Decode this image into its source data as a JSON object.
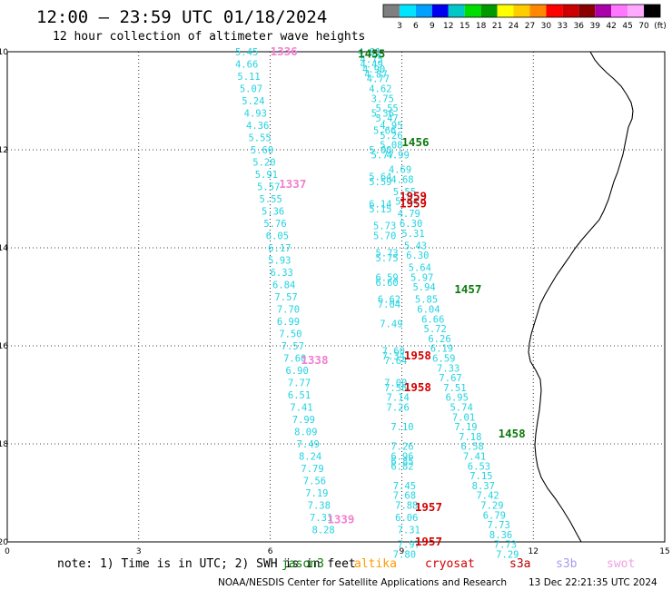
{
  "chart_data": {
    "type": "scatter",
    "title": "12:00 – 23:59 UTC 01/18/2024",
    "subtitle": "12 hour collection of altimeter wave heights",
    "xlim": [
      0,
      15
    ],
    "ylim": [
      -20,
      -10
    ],
    "x_ticks": [
      0,
      3,
      6,
      9,
      12,
      15
    ],
    "y_ticks": [
      -10,
      -12,
      -14,
      -16,
      -18,
      -20
    ],
    "x_tick_labels": [
      "0",
      "3",
      "6",
      "9",
      "12",
      "15"
    ],
    "y_tick_labels": [
      "-10",
      "-12",
      "-14",
      "-16",
      "-18",
      "-20"
    ],
    "grid": true,
    "legend_scale": {
      "labels": [
        "3",
        "6",
        "9",
        "12",
        "15",
        "18",
        "21",
        "24",
        "27",
        "30",
        "33",
        "36",
        "39",
        "42",
        "45",
        "70",
        "(ft)"
      ],
      "colors": [
        "#7f7f7f",
        "#00e5ff",
        "#00a0ff",
        "#0000ee",
        "#00c8c8",
        "#00dd00",
        "#009900",
        "#ffff00",
        "#ffcc00",
        "#ff8800",
        "#ff0000",
        "#cc0000",
        "#880000",
        "#aa00aa",
        "#ff77ff",
        "#ffaaff",
        "#000000"
      ]
    },
    "series": [
      {
        "color": "#22d3e0",
        "points": [
          {
            "x": 5.2,
            "y": -10.0,
            "v": "5.45"
          },
          {
            "x": 5.2,
            "y": -10.25,
            "v": "4.66"
          },
          {
            "x": 5.25,
            "y": -10.5,
            "v": "5.11"
          },
          {
            "x": 5.3,
            "y": -10.75,
            "v": "5.07"
          },
          {
            "x": 5.35,
            "y": -11.0,
            "v": "5.24"
          },
          {
            "x": 5.4,
            "y": -11.25,
            "v": "4.93"
          },
          {
            "x": 5.45,
            "y": -11.5,
            "v": "4.36"
          },
          {
            "x": 5.5,
            "y": -11.75,
            "v": "5.55"
          },
          {
            "x": 5.55,
            "y": -12.0,
            "v": "5.60"
          },
          {
            "x": 5.6,
            "y": -12.25,
            "v": "5.20"
          },
          {
            "x": 5.65,
            "y": -12.5,
            "v": "5.91"
          },
          {
            "x": 5.7,
            "y": -12.75,
            "v": "5.57"
          },
          {
            "x": 5.75,
            "y": -13.0,
            "v": "5.55"
          },
          {
            "x": 5.8,
            "y": -13.25,
            "v": "5.36"
          },
          {
            "x": 5.85,
            "y": -13.5,
            "v": "5.76"
          },
          {
            "x": 5.9,
            "y": -13.75,
            "v": "6.05"
          },
          {
            "x": 5.95,
            "y": -14.0,
            "v": "6.17"
          },
          {
            "x": 5.95,
            "y": -14.25,
            "v": "5.93"
          },
          {
            "x": 6.0,
            "y": -14.5,
            "v": "6.33"
          },
          {
            "x": 6.05,
            "y": -14.75,
            "v": "6.84"
          },
          {
            "x": 6.1,
            "y": -15.0,
            "v": "7.57"
          },
          {
            "x": 6.15,
            "y": -15.25,
            "v": "7.70"
          },
          {
            "x": 6.15,
            "y": -15.5,
            "v": "6.99"
          },
          {
            "x": 6.2,
            "y": -15.75,
            "v": "7.50"
          },
          {
            "x": 6.25,
            "y": -16.0,
            "v": "7.57"
          },
          {
            "x": 6.3,
            "y": -16.25,
            "v": "7.60"
          },
          {
            "x": 6.35,
            "y": -16.5,
            "v": "6.90"
          },
          {
            "x": 6.4,
            "y": -16.75,
            "v": "7.77"
          },
          {
            "x": 6.4,
            "y": -17.0,
            "v": "6.51"
          },
          {
            "x": 6.45,
            "y": -17.25,
            "v": "7.41"
          },
          {
            "x": 6.5,
            "y": -17.5,
            "v": "7.99"
          },
          {
            "x": 6.55,
            "y": -17.75,
            "v": "8.09"
          },
          {
            "x": 6.6,
            "y": -18.0,
            "v": "7.49"
          },
          {
            "x": 6.65,
            "y": -18.25,
            "v": "8.24"
          },
          {
            "x": 6.7,
            "y": -18.5,
            "v": "7.79"
          },
          {
            "x": 6.75,
            "y": -18.75,
            "v": "7.56"
          },
          {
            "x": 6.8,
            "y": -19.0,
            "v": "7.19"
          },
          {
            "x": 6.85,
            "y": -19.25,
            "v": "7.38"
          },
          {
            "x": 6.9,
            "y": -19.5,
            "v": "7.31"
          },
          {
            "x": 6.95,
            "y": -19.75,
            "v": "8.28"
          }
        ]
      },
      {
        "color": "#22d3e0",
        "points": [
          {
            "x": 8.0,
            "y": -10.0,
            "v": "4.81"
          },
          {
            "x": 8.05,
            "y": -10.15,
            "v": "4.75"
          },
          {
            "x": 8.05,
            "y": -10.25,
            "v": "4.49"
          },
          {
            "x": 8.1,
            "y": -10.35,
            "v": "4.90"
          },
          {
            "x": 8.15,
            "y": -10.45,
            "v": "4.87"
          },
          {
            "x": 8.2,
            "y": -10.55,
            "v": "4.77"
          },
          {
            "x": 8.25,
            "y": -10.75,
            "v": "4.62"
          },
          {
            "x": 8.3,
            "y": -10.95,
            "v": "3.75"
          },
          {
            "x": 8.4,
            "y": -11.15,
            "v": "5.55"
          },
          {
            "x": 8.3,
            "y": -11.25,
            "v": "5.36"
          },
          {
            "x": 8.4,
            "y": -11.35,
            "v": "5.47"
          },
          {
            "x": 8.5,
            "y": -11.5,
            "v": "4.95"
          },
          {
            "x": 8.35,
            "y": -11.6,
            "v": "5.66"
          },
          {
            "x": 8.5,
            "y": -11.7,
            "v": "5.26"
          },
          {
            "x": 8.5,
            "y": -11.9,
            "v": "5.08"
          },
          {
            "x": 8.25,
            "y": -12.0,
            "v": "5.00"
          },
          {
            "x": 8.3,
            "y": -12.1,
            "v": "5.77"
          },
          {
            "x": 8.65,
            "y": -12.1,
            "v": "4.99"
          },
          {
            "x": 8.7,
            "y": -12.4,
            "v": "4.69"
          },
          {
            "x": 8.75,
            "y": -12.6,
            "v": "4.68"
          },
          {
            "x": 8.25,
            "y": -12.55,
            "v": "5.64"
          },
          {
            "x": 8.25,
            "y": -12.65,
            "v": "5.59"
          },
          {
            "x": 8.8,
            "y": -12.85,
            "v": "5.55"
          },
          {
            "x": 8.25,
            "y": -13.1,
            "v": "6.14"
          },
          {
            "x": 8.25,
            "y": -13.2,
            "v": "5.15"
          },
          {
            "x": 8.85,
            "y": -13.05,
            "v": "5.74"
          },
          {
            "x": 8.9,
            "y": -13.3,
            "v": "4.79"
          },
          {
            "x": 8.95,
            "y": -13.5,
            "v": "6.30"
          },
          {
            "x": 8.35,
            "y": -13.55,
            "v": "5.73"
          },
          {
            "x": 8.35,
            "y": -13.75,
            "v": "5.70"
          },
          {
            "x": 9.0,
            "y": -13.7,
            "v": "5.31"
          },
          {
            "x": 9.05,
            "y": -13.95,
            "v": "5.43"
          },
          {
            "x": 8.4,
            "y": -14.1,
            "v": "5.73"
          },
          {
            "x": 8.4,
            "y": -14.2,
            "v": "5.75"
          },
          {
            "x": 9.1,
            "y": -14.15,
            "v": "6.30"
          },
          {
            "x": 9.15,
            "y": -14.4,
            "v": "5.64"
          },
          {
            "x": 9.2,
            "y": -14.6,
            "v": "5.97"
          },
          {
            "x": 8.4,
            "y": -14.6,
            "v": "6.59"
          },
          {
            "x": 8.4,
            "y": -14.7,
            "v": "6.60"
          },
          {
            "x": 9.25,
            "y": -14.8,
            "v": "5.94"
          },
          {
            "x": 9.3,
            "y": -15.05,
            "v": "5.85"
          },
          {
            "x": 8.45,
            "y": -15.05,
            "v": "6.62"
          },
          {
            "x": 8.45,
            "y": -15.15,
            "v": "7.04"
          },
          {
            "x": 9.35,
            "y": -15.25,
            "v": "6.04"
          },
          {
            "x": 9.45,
            "y": -15.45,
            "v": "6.66"
          },
          {
            "x": 8.5,
            "y": -15.55,
            "v": "7.49"
          },
          {
            "x": 9.5,
            "y": -15.65,
            "v": "5.72"
          },
          {
            "x": 9.6,
            "y": -15.85,
            "v": "6.26"
          },
          {
            "x": 9.65,
            "y": -16.05,
            "v": "6.19"
          },
          {
            "x": 8.55,
            "y": -16.1,
            "v": "7.60"
          },
          {
            "x": 8.55,
            "y": -16.2,
            "v": "7.34"
          },
          {
            "x": 8.6,
            "y": -16.3,
            "v": "7.64"
          },
          {
            "x": 9.7,
            "y": -16.25,
            "v": "6.59"
          },
          {
            "x": 9.8,
            "y": -16.45,
            "v": "7.33"
          },
          {
            "x": 9.85,
            "y": -16.65,
            "v": "7.67"
          },
          {
            "x": 8.6,
            "y": -16.75,
            "v": "7.00"
          },
          {
            "x": 8.6,
            "y": -16.85,
            "v": "7.56"
          },
          {
            "x": 9.95,
            "y": -16.85,
            "v": "7.51"
          },
          {
            "x": 8.65,
            "y": -17.05,
            "v": "7.14"
          },
          {
            "x": 10.0,
            "y": -17.05,
            "v": "6.95"
          },
          {
            "x": 8.65,
            "y": -17.25,
            "v": "7.26"
          },
          {
            "x": 10.1,
            "y": -17.25,
            "v": "5.74"
          },
          {
            "x": 10.15,
            "y": -17.45,
            "v": "7.01"
          },
          {
            "x": 8.75,
            "y": -17.65,
            "v": "7.10"
          },
          {
            "x": 10.2,
            "y": -17.65,
            "v": "7.19"
          },
          {
            "x": 10.3,
            "y": -17.85,
            "v": "7.18"
          },
          {
            "x": 8.75,
            "y": -18.05,
            "v": "7.26"
          },
          {
            "x": 10.35,
            "y": -18.05,
            "v": "6.58"
          },
          {
            "x": 8.75,
            "y": -18.25,
            "v": "6.96"
          },
          {
            "x": 8.75,
            "y": -18.35,
            "v": "6.85"
          },
          {
            "x": 8.75,
            "y": -18.45,
            "v": "6.82"
          },
          {
            "x": 10.4,
            "y": -18.25,
            "v": "7.41"
          },
          {
            "x": 10.5,
            "y": -18.45,
            "v": "6.53"
          },
          {
            "x": 10.55,
            "y": -18.65,
            "v": "7.15"
          },
          {
            "x": 8.8,
            "y": -18.85,
            "v": "7.45"
          },
          {
            "x": 10.6,
            "y": -18.85,
            "v": "8.37"
          },
          {
            "x": 8.8,
            "y": -19.05,
            "v": "7.68"
          },
          {
            "x": 10.7,
            "y": -19.05,
            "v": "7.42"
          },
          {
            "x": 8.85,
            "y": -19.25,
            "v": "7.88"
          },
          {
            "x": 10.8,
            "y": -19.25,
            "v": "7.29"
          },
          {
            "x": 8.85,
            "y": -19.5,
            "v": "6.06"
          },
          {
            "x": 10.85,
            "y": -19.45,
            "v": "6.79"
          },
          {
            "x": 8.9,
            "y": -19.75,
            "v": "7.31"
          },
          {
            "x": 10.95,
            "y": -19.65,
            "v": "7.73"
          },
          {
            "x": 11.0,
            "y": -19.85,
            "v": "8.36"
          },
          {
            "x": 8.9,
            "y": -20.05,
            "v": "7.97"
          },
          {
            "x": 11.1,
            "y": -20.05,
            "v": "7.73"
          },
          {
            "x": 8.8,
            "y": -20.25,
            "v": "7.80"
          },
          {
            "x": 11.15,
            "y": -20.25,
            "v": "7.29"
          }
        ]
      }
    ],
    "pass_labels": [
      {
        "x": 6.0,
        "y": -10.0,
        "text": "1336",
        "color": "#f17fcf"
      },
      {
        "x": 8.0,
        "y": -10.05,
        "text": "1455",
        "color": "#0c7a0c"
      },
      {
        "x": 9.0,
        "y": -11.85,
        "text": "1456",
        "color": "#0c7a0c"
      },
      {
        "x": 6.2,
        "y": -12.7,
        "text": "1337",
        "color": "#f17fcf"
      },
      {
        "x": 8.95,
        "y": -12.95,
        "text": "1959",
        "color": "#d40000"
      },
      {
        "x": 8.95,
        "y": -13.1,
        "text": "1959",
        "color": "#d40000"
      },
      {
        "x": 10.2,
        "y": -14.85,
        "text": "1457",
        "color": "#0c7a0c"
      },
      {
        "x": 9.05,
        "y": -16.2,
        "text": "1958",
        "color": "#d40000"
      },
      {
        "x": 6.7,
        "y": -16.3,
        "text": "1338",
        "color": "#f17fcf"
      },
      {
        "x": 9.05,
        "y": -16.85,
        "text": "1958",
        "color": "#d40000"
      },
      {
        "x": 11.2,
        "y": -17.8,
        "text": "1458",
        "color": "#0c7a0c"
      },
      {
        "x": 9.3,
        "y": -19.3,
        "text": "1957",
        "color": "#d40000"
      },
      {
        "x": 7.3,
        "y": -19.55,
        "text": "1339",
        "color": "#f17fcf"
      },
      {
        "x": 9.3,
        "y": -20.0,
        "text": "1957",
        "color": "#d40000"
      }
    ]
  },
  "note": "note: 1) Time is in UTC; 2) SWH is in feet",
  "missions": [
    {
      "label": "jason3",
      "color": "#0c7a0c"
    },
    {
      "label": "altika",
      "color": "#ff9900"
    },
    {
      "label": "cryosat",
      "color": "#d40000"
    },
    {
      "label": "s3a",
      "color": "#bb0000"
    },
    {
      "label": "s3b",
      "color": "#a99cf0"
    },
    {
      "label": "swot",
      "color": "#f2a0e0"
    }
  ],
  "credit_left": "NOAA/NESDIS Center for Satellite Applications and Research",
  "credit_right": "13 Dec 22:21:35 UTC 2024"
}
